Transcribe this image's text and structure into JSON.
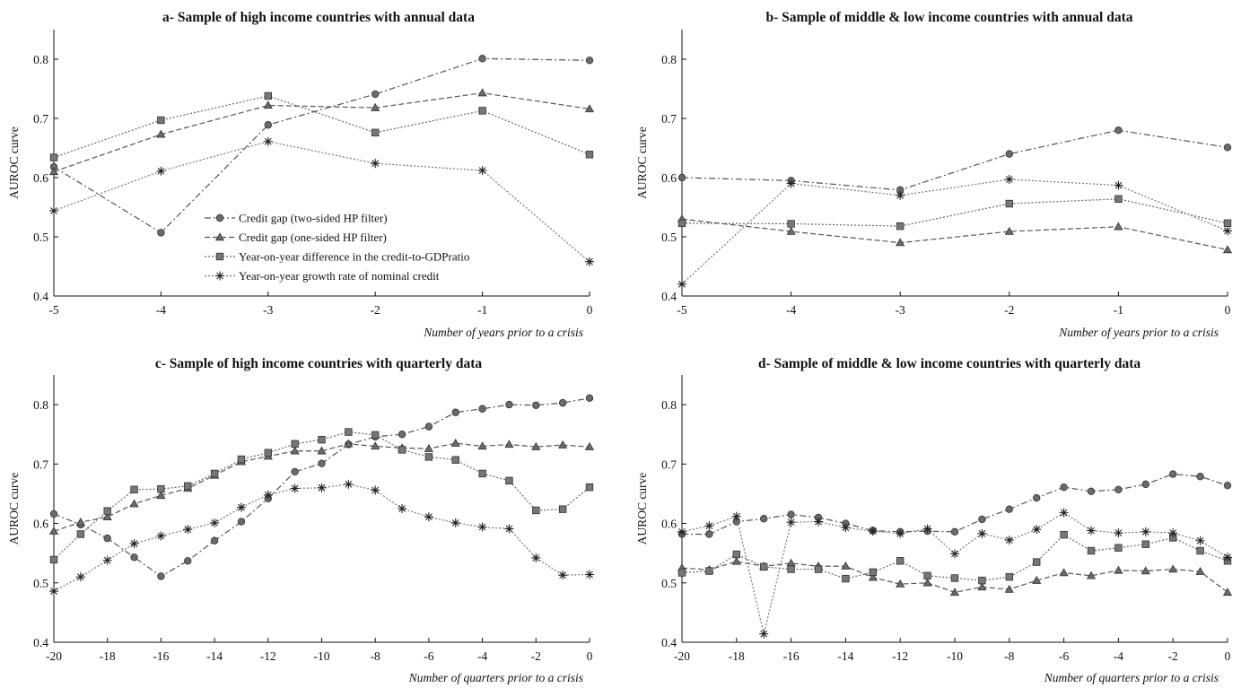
{
  "chart_data": [
    {
      "type": "line",
      "title": "a- Sample of high income countries with annual data",
      "xlabel": "Number of years prior to a crisis",
      "ylabel": "AUROC curve",
      "xlim": [
        -5,
        0
      ],
      "ylim": [
        0.4,
        0.85
      ],
      "xticks": [
        -5,
        -4,
        -3,
        -2,
        -1,
        0
      ],
      "yticks": [
        0.4,
        0.5,
        0.6,
        0.7,
        0.8
      ],
      "x": [
        -5,
        -4,
        -3,
        -2,
        -1,
        0
      ],
      "legend": "lower-left",
      "series": [
        {
          "name": "Credit gap (two-sided HP filter)",
          "marker": "circle",
          "dash": "dashdot",
          "values": [
            0.618,
            0.507,
            0.689,
            0.741,
            0.801,
            0.798
          ]
        },
        {
          "name": "Credit gap (one-sided HP filter)",
          "marker": "triangle",
          "dash": "dashed",
          "values": [
            0.61,
            0.673,
            0.722,
            0.718,
            0.743,
            0.716
          ]
        },
        {
          "name": "Year-on-year difference in the credit-to-GDPratio",
          "marker": "square",
          "dash": "dotted",
          "values": [
            0.634,
            0.697,
            0.738,
            0.676,
            0.713,
            0.639
          ]
        },
        {
          "name": "Year-on-year growth rate of nominal credit",
          "marker": "star",
          "dash": "dotted",
          "values": [
            0.544,
            0.611,
            0.661,
            0.624,
            0.612,
            0.458
          ]
        }
      ]
    },
    {
      "type": "line",
      "title": "b- Sample of middle & low income countries with annual data",
      "xlabel": "Number of years prior to a crisis",
      "ylabel": "AUROC curve",
      "xlim": [
        -5,
        0
      ],
      "ylim": [
        0.4,
        0.85
      ],
      "xticks": [
        -5,
        -4,
        -3,
        -2,
        -1,
        0
      ],
      "yticks": [
        0.4,
        0.5,
        0.6,
        0.7,
        0.8
      ],
      "x": [
        -5,
        -4,
        -3,
        -2,
        -1,
        0
      ],
      "series": [
        {
          "marker": "circle",
          "dash": "dashdot",
          "values": [
            0.6,
            0.595,
            0.579,
            0.64,
            0.68,
            0.651
          ]
        },
        {
          "marker": "triangle",
          "dash": "dashed",
          "values": [
            0.53,
            0.509,
            0.49,
            0.509,
            0.517,
            0.478
          ]
        },
        {
          "marker": "square",
          "dash": "dotted",
          "values": [
            0.523,
            0.522,
            0.518,
            0.556,
            0.564,
            0.523
          ]
        },
        {
          "marker": "star",
          "dash": "dotted",
          "values": [
            0.42,
            0.59,
            0.57,
            0.597,
            0.587,
            0.51
          ]
        }
      ]
    },
    {
      "type": "line",
      "title": "c- Sample of high income countries with quarterly data",
      "xlabel": "Number of quarters prior to a crisis",
      "ylabel": "AUROC curve",
      "xlim": [
        -20,
        0
      ],
      "ylim": [
        0.4,
        0.85
      ],
      "xticks": [
        -20,
        -18,
        -16,
        -14,
        -12,
        -10,
        -8,
        -6,
        -4,
        -2,
        0
      ],
      "yticks": [
        0.4,
        0.5,
        0.6,
        0.7,
        0.8
      ],
      "x": [
        -20,
        -19,
        -18,
        -17,
        -16,
        -15,
        -14,
        -13,
        -12,
        -11,
        -10,
        -9,
        -8,
        -7,
        -6,
        -5,
        -4,
        -3,
        -2,
        -1,
        0
      ],
      "series": [
        {
          "marker": "circle",
          "dash": "dashdot",
          "values": [
            0.616,
            0.598,
            0.575,
            0.543,
            0.511,
            0.537,
            0.571,
            0.603,
            0.642,
            0.687,
            0.701,
            0.733,
            0.746,
            0.75,
            0.763,
            0.787,
            0.793,
            0.8,
            0.799,
            0.803,
            0.811
          ]
        },
        {
          "marker": "triangle",
          "dash": "dashed",
          "values": [
            0.587,
            0.602,
            0.611,
            0.633,
            0.647,
            0.659,
            0.681,
            0.704,
            0.713,
            0.722,
            0.722,
            0.734,
            0.73,
            0.727,
            0.726,
            0.735,
            0.73,
            0.733,
            0.729,
            0.732,
            0.729
          ]
        },
        {
          "marker": "square",
          "dash": "dotted",
          "values": [
            0.539,
            0.582,
            0.621,
            0.657,
            0.658,
            0.663,
            0.684,
            0.708,
            0.719,
            0.734,
            0.741,
            0.754,
            0.749,
            0.724,
            0.712,
            0.707,
            0.684,
            0.672,
            0.622,
            0.624,
            0.661
          ]
        },
        {
          "marker": "star",
          "dash": "dotted",
          "values": [
            0.486,
            0.51,
            0.538,
            0.566,
            0.579,
            0.59,
            0.601,
            0.627,
            0.648,
            0.659,
            0.66,
            0.666,
            0.656,
            0.625,
            0.611,
            0.601,
            0.594,
            0.591,
            0.542,
            0.513,
            0.514
          ]
        }
      ]
    },
    {
      "type": "line",
      "title": "d- Sample of middle & low income countries with quarterly data",
      "xlabel": "Number of quarters prior to a crisis",
      "ylabel": "AUROC curve",
      "xlim": [
        -20,
        0
      ],
      "ylim": [
        0.4,
        0.85
      ],
      "xticks": [
        -20,
        -18,
        -16,
        -14,
        -12,
        -10,
        -8,
        -6,
        -4,
        -2,
        0
      ],
      "yticks": [
        0.4,
        0.5,
        0.6,
        0.7,
        0.8
      ],
      "x": [
        -20,
        -19,
        -18,
        -17,
        -16,
        -15,
        -14,
        -13,
        -12,
        -11,
        -10,
        -9,
        -8,
        -7,
        -6,
        -5,
        -4,
        -3,
        -2,
        -1,
        0
      ],
      "series": [
        {
          "marker": "circle",
          "dash": "dashdot",
          "values": [
            0.582,
            0.582,
            0.603,
            0.608,
            0.615,
            0.61,
            0.6,
            0.588,
            0.586,
            0.587,
            0.586,
            0.607,
            0.624,
            0.643,
            0.661,
            0.654,
            0.657,
            0.666,
            0.683,
            0.679,
            0.664
          ]
        },
        {
          "marker": "triangle",
          "dash": "dashed",
          "values": [
            0.525,
            0.522,
            0.536,
            0.528,
            0.533,
            0.528,
            0.528,
            0.509,
            0.498,
            0.5,
            0.484,
            0.493,
            0.489,
            0.504,
            0.517,
            0.512,
            0.521,
            0.52,
            0.523,
            0.519,
            0.484
          ]
        },
        {
          "marker": "square",
          "dash": "dotted",
          "values": [
            0.517,
            0.52,
            0.548,
            0.527,
            0.523,
            0.523,
            0.507,
            0.518,
            0.537,
            0.512,
            0.508,
            0.504,
            0.51,
            0.535,
            0.581,
            0.554,
            0.559,
            0.565,
            0.576,
            0.554,
            0.537
          ]
        },
        {
          "marker": "star",
          "dash": "dotted",
          "values": [
            0.586,
            0.596,
            0.612,
            0.414,
            0.602,
            0.603,
            0.593,
            0.587,
            0.583,
            0.591,
            0.549,
            0.583,
            0.572,
            0.59,
            0.618,
            0.588,
            0.584,
            0.586,
            0.584,
            0.571,
            0.543
          ]
        }
      ]
    }
  ]
}
